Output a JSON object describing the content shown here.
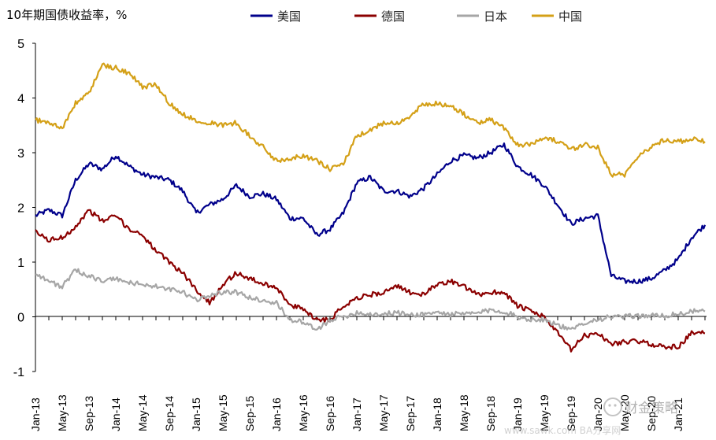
{
  "chart_data": {
    "type": "line",
    "title": "10年期国债收益率，%",
    "xlabel": "",
    "ylabel": "",
    "ylim": [
      -1,
      5
    ],
    "yticks": [
      5,
      4,
      3,
      2,
      1,
      0,
      -1
    ],
    "grid": false,
    "legend_position": "top",
    "x_tick_labels": [
      "Jan-13",
      "May-13",
      "Sep-13",
      "Jan-14",
      "May-14",
      "Sep-14",
      "Jan-15",
      "May-15",
      "Sep-15",
      "Jan-16",
      "May-16",
      "Sep-16",
      "Jan-17",
      "May-17",
      "Sep-17",
      "Jan-18",
      "May-18",
      "Sep-18",
      "Jan-19",
      "May-19",
      "Sep-19",
      "Jan-20",
      "May-20",
      "Sep-20",
      "Jan-21"
    ],
    "x": [
      "Jan-13",
      "Mar-13",
      "May-13",
      "Jul-13",
      "Sep-13",
      "Nov-13",
      "Jan-14",
      "Mar-14",
      "May-14",
      "Jul-14",
      "Sep-14",
      "Nov-14",
      "Jan-15",
      "Mar-15",
      "May-15",
      "Jul-15",
      "Sep-15",
      "Nov-15",
      "Jan-16",
      "Mar-16",
      "May-16",
      "Jul-16",
      "Sep-16",
      "Nov-16",
      "Jan-17",
      "Mar-17",
      "May-17",
      "Jul-17",
      "Sep-17",
      "Nov-17",
      "Jan-18",
      "Mar-18",
      "May-18",
      "Jul-18",
      "Sep-18",
      "Nov-18",
      "Jan-19",
      "Mar-19",
      "May-19",
      "Jul-19",
      "Sep-19",
      "Nov-19",
      "Jan-20",
      "Mar-20",
      "May-20",
      "Jul-20",
      "Sep-20",
      "Nov-20",
      "Jan-21",
      "Mar-21",
      "Apr-21"
    ],
    "series": [
      {
        "name": "美国",
        "color": "#00008b",
        "values": [
          1.85,
          1.95,
          1.85,
          2.5,
          2.8,
          2.7,
          2.95,
          2.75,
          2.6,
          2.55,
          2.5,
          2.3,
          1.9,
          2.05,
          2.15,
          2.4,
          2.2,
          2.25,
          2.15,
          1.8,
          1.8,
          1.5,
          1.6,
          1.9,
          2.45,
          2.55,
          2.3,
          2.3,
          2.2,
          2.35,
          2.6,
          2.85,
          2.95,
          2.9,
          3.0,
          3.15,
          2.75,
          2.6,
          2.4,
          2.05,
          1.7,
          1.8,
          1.85,
          0.75,
          0.65,
          0.65,
          0.7,
          0.85,
          1.05,
          1.45,
          1.68
        ]
      },
      {
        "name": "德国",
        "color": "#8b0000",
        "values": [
          1.55,
          1.4,
          1.45,
          1.65,
          1.95,
          1.75,
          1.85,
          1.6,
          1.5,
          1.2,
          1.0,
          0.8,
          0.5,
          0.25,
          0.6,
          0.8,
          0.7,
          0.6,
          0.55,
          0.2,
          0.15,
          -0.05,
          -0.05,
          0.2,
          0.35,
          0.4,
          0.45,
          0.55,
          0.45,
          0.4,
          0.6,
          0.65,
          0.55,
          0.4,
          0.45,
          0.45,
          0.2,
          0.1,
          0.0,
          -0.3,
          -0.6,
          -0.35,
          -0.3,
          -0.5,
          -0.45,
          -0.45,
          -0.5,
          -0.55,
          -0.55,
          -0.3,
          -0.3
        ]
      },
      {
        "name": "日本",
        "color": "#a6a6a6",
        "values": [
          0.8,
          0.65,
          0.55,
          0.85,
          0.75,
          0.65,
          0.7,
          0.62,
          0.6,
          0.55,
          0.5,
          0.45,
          0.3,
          0.4,
          0.45,
          0.45,
          0.35,
          0.3,
          0.25,
          -0.05,
          -0.1,
          -0.25,
          -0.05,
          0.0,
          0.08,
          0.05,
          0.05,
          0.08,
          0.03,
          0.05,
          0.08,
          0.05,
          0.05,
          0.07,
          0.12,
          0.1,
          0.0,
          -0.05,
          -0.05,
          -0.15,
          -0.25,
          -0.1,
          -0.05,
          0.0,
          0.0,
          0.02,
          0.02,
          0.02,
          0.05,
          0.1,
          0.1
        ]
      },
      {
        "name": "中国",
        "color": "#d4a017",
        "values": [
          3.6,
          3.55,
          3.45,
          3.9,
          4.1,
          4.6,
          4.55,
          4.45,
          4.2,
          4.25,
          3.9,
          3.7,
          3.6,
          3.55,
          3.5,
          3.55,
          3.3,
          3.1,
          2.85,
          2.9,
          2.95,
          2.85,
          2.7,
          2.8,
          3.3,
          3.4,
          3.55,
          3.55,
          3.65,
          3.9,
          3.9,
          3.85,
          3.7,
          3.55,
          3.6,
          3.45,
          3.15,
          3.15,
          3.3,
          3.2,
          3.05,
          3.15,
          3.1,
          2.6,
          2.6,
          2.95,
          3.1,
          3.25,
          3.2,
          3.25,
          3.2
        ]
      }
    ]
  },
  "watermark": {
    "main": "财金策略",
    "site": "www.sawk.com  BA分享网"
  }
}
